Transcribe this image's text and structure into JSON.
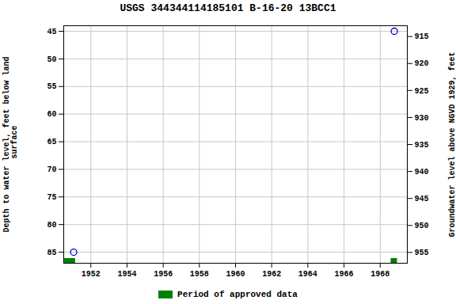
{
  "chart_data": {
    "type": "scatter",
    "title": "USGS 344344114185101 B-16-20 13BCC1",
    "ylabel": "Depth to water level, feet below land\n surface",
    "y2label": "Groundwater level above NGVD 1929, feet",
    "x": [
      1951.05,
      1968.78
    ],
    "values": [
      85,
      45
    ],
    "color": "#0000cc",
    "marker": "circle",
    "xlim": [
      1950.5,
      1969.5
    ],
    "xticks": [
      1952,
      1954,
      1956,
      1958,
      1960,
      1962,
      1964,
      1966,
      1968
    ],
    "ylim": [
      87,
      44
    ],
    "yticks": [
      45,
      50,
      55,
      60,
      65,
      70,
      75,
      80,
      85
    ],
    "y2lim": [
      957,
      913
    ],
    "y2ticks": [
      915,
      920,
      925,
      930,
      935,
      940,
      945,
      950,
      955
    ],
    "approved_periods": {
      "name": "Period of approved data",
      "color": "#008000",
      "x_start": [
        1950.55,
        1968.6
      ],
      "x_end": [
        1951.15,
        1968.95
      ]
    },
    "grid": true,
    "legend": "bottom"
  }
}
